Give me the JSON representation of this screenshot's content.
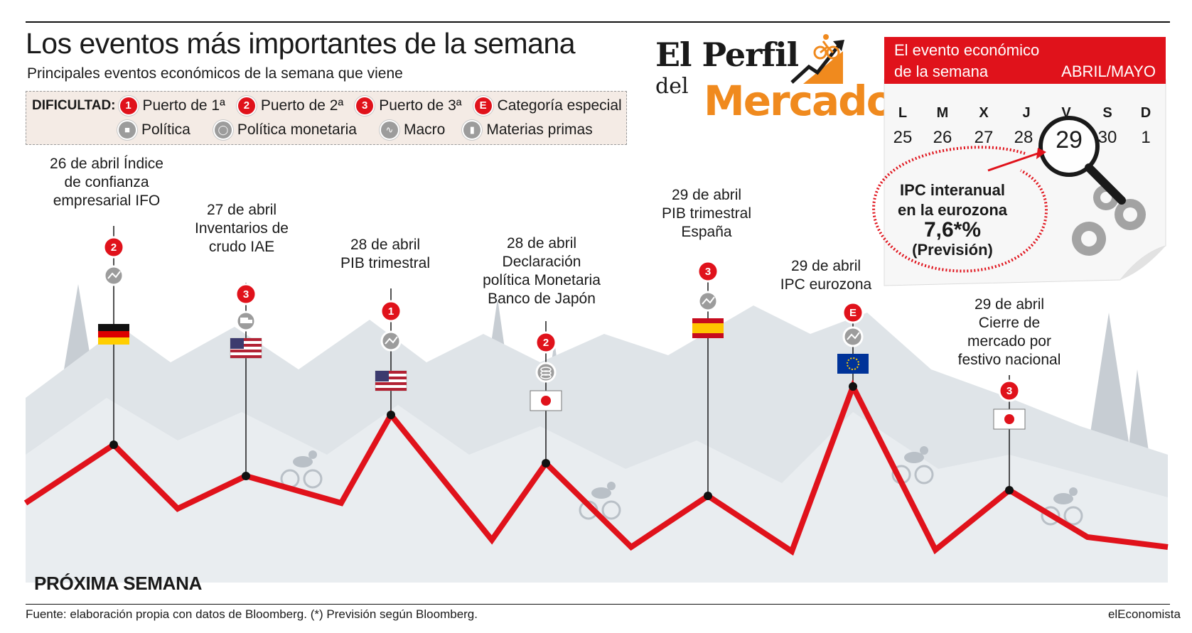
{
  "header": {
    "title": "Los eventos más importantes de la semana",
    "subtitle": "Principales eventos económicos de la semana que viene"
  },
  "legend": {
    "label": "DIFICULTAD:",
    "difficulty": [
      {
        "badge": "1",
        "text": "Puerto de 1ª"
      },
      {
        "badge": "2",
        "text": "Puerto de 2ª"
      },
      {
        "badge": "3",
        "text": "Puerto de 3ª"
      },
      {
        "badge": "E",
        "text": "Categoría especial"
      }
    ],
    "types": [
      {
        "icon": "politica-icon",
        "text": "Política"
      },
      {
        "icon": "coins-icon",
        "text": "Política monetaria"
      },
      {
        "icon": "trend-icon",
        "text": "Macro"
      },
      {
        "icon": "truck-icon",
        "text": "Materias primas"
      }
    ]
  },
  "brand": {
    "line1": "El Perfil",
    "line2": "del",
    "line3": "Mercado"
  },
  "calendar": {
    "header_line1": "El evento económico",
    "header_line2": "de la semana",
    "month": "ABRIL/MAYO",
    "days": [
      "L",
      "M",
      "X",
      "J",
      "V",
      "S",
      "D"
    ],
    "numbers": [
      "25",
      "26",
      "27",
      "28",
      "29",
      "30",
      "1"
    ],
    "highlight": "29",
    "callout_line1": "IPC interanual",
    "callout_line2": "en la eurozona",
    "callout_value": "7,6*%",
    "callout_line4": "(Previsión)"
  },
  "events": [
    {
      "lines": [
        "26 de abril  Índice",
        "de confianza",
        "empresarial IFO"
      ],
      "badge": "2",
      "icon": "trend-icon",
      "flag": "germany"
    },
    {
      "lines": [
        "27 de abril",
        "Inventarios de",
        "crudo IAE"
      ],
      "badge": "3",
      "icon": "truck-icon",
      "flag": "usa"
    },
    {
      "lines": [
        "28 de abril",
        "PIB trimestral"
      ],
      "badge": "1",
      "icon": "trend-icon",
      "flag": "usa"
    },
    {
      "lines": [
        "28 de abril",
        "Declaración",
        "política Monetaria",
        "Banco de Japón"
      ],
      "badge": "2",
      "icon": "coins-icon",
      "flag": "japan"
    },
    {
      "lines": [
        "29 de abril",
        "PIB trimestral",
        "España"
      ],
      "badge": "3",
      "icon": "trend-icon",
      "flag": "spain"
    },
    {
      "lines": [
        "29 de abril",
        "IPC eurozona"
      ],
      "badge": "E",
      "icon": "trend-icon",
      "flag": "eu"
    },
    {
      "lines": [
        "29 de abril",
        "Cierre de",
        "mercado por",
        "festivo nacional"
      ],
      "badge": "3",
      "icon": "",
      "flag": "japan"
    }
  ],
  "footer": {
    "section_label": "PRÓXIMA SEMANA",
    "source": "Fuente: elaboración propia con datos de Bloomberg. (*) Previsión según Bloomberg.",
    "credit": "elEconomista"
  },
  "colors": {
    "accent_red": "#e0121b",
    "brand_orange": "#f08a1e",
    "mountain_gray": "#dfe4e8",
    "tree_gray": "#c7cdd3"
  }
}
